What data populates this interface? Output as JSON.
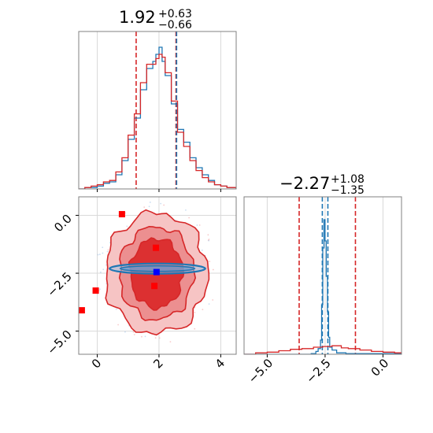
{
  "chart_data": [
    {
      "type": "histogram",
      "panel": "top-left",
      "title": {
        "median": "1.92",
        "plus": "+0.63",
        "minus": "−0.66"
      },
      "xlim": [
        -0.6,
        4.5
      ],
      "grid": true,
      "vlines": [
        {
          "x": 1.26,
          "color": "#d62728"
        },
        {
          "x": 2.55,
          "color": "#d62728"
        },
        {
          "x": 2.57,
          "color": "#1f77b4"
        }
      ],
      "series": [
        {
          "color": "#1f77b4",
          "x": [
            -0.6,
            -0.4,
            -0.2,
            0.0,
            0.2,
            0.4,
            0.6,
            0.8,
            1.0,
            1.2,
            1.4,
            1.6,
            1.8,
            1.9,
            2.0,
            2.1,
            2.2,
            2.4,
            2.6,
            2.8,
            3.0,
            3.2,
            3.4,
            3.6,
            3.8,
            4.0,
            4.2,
            4.5
          ],
          "y": [
            0.0,
            0.01,
            0.01,
            0.02,
            0.04,
            0.05,
            0.1,
            0.2,
            0.35,
            0.5,
            0.7,
            0.85,
            0.9,
            0.95,
            1.0,
            0.9,
            0.8,
            0.6,
            0.42,
            0.33,
            0.22,
            0.15,
            0.1,
            0.06,
            0.03,
            0.02,
            0.01,
            0.0
          ]
        },
        {
          "color": "#d62728",
          "x": [
            -0.6,
            -0.4,
            -0.2,
            0.0,
            0.2,
            0.4,
            0.6,
            0.8,
            1.0,
            1.2,
            1.4,
            1.6,
            1.8,
            1.9,
            2.0,
            2.1,
            2.2,
            2.4,
            2.6,
            2.8,
            3.0,
            3.2,
            3.4,
            3.6,
            3.8,
            4.0,
            4.2,
            4.5
          ],
          "y": [
            0.0,
            0.01,
            0.02,
            0.03,
            0.05,
            0.06,
            0.12,
            0.22,
            0.38,
            0.53,
            0.75,
            0.88,
            0.88,
            0.92,
            0.95,
            0.93,
            0.82,
            0.62,
            0.4,
            0.3,
            0.2,
            0.13,
            0.08,
            0.05,
            0.03,
            0.02,
            0.01,
            0.0
          ]
        }
      ]
    },
    {
      "type": "contour",
      "panel": "bottom-left",
      "xlim": [
        -0.6,
        4.5
      ],
      "ylim": [
        -6.0,
        0.8
      ],
      "xticks": [
        "0",
        "2",
        "4"
      ],
      "xtick_values": [
        0,
        2,
        4
      ],
      "yticks": [
        "0.0",
        "−2.5",
        "−5.0"
      ],
      "ytick_values": [
        0.0,
        -2.5,
        -5.0
      ],
      "grid": true,
      "red_contours": {
        "center": [
          1.92,
          -2.5
        ],
        "radii_x": [
          1.65,
          1.2,
          0.85
        ],
        "radii_y": [
          2.6,
          2.0,
          1.5
        ],
        "fills": [
          "#f6c4c4",
          "#ec8f90",
          "#dc3031"
        ],
        "color": "#d62728"
      },
      "blue_contour": {
        "center": [
          1.95,
          -2.3
        ],
        "rx": 1.55,
        "ry": 0.22,
        "color": "#1f77b4"
      },
      "red_markers": [
        [
          0.8,
          0.05
        ],
        [
          1.9,
          -1.4
        ],
        [
          1.85,
          -3.05
        ],
        [
          -0.05,
          -3.25
        ],
        [
          -0.5,
          -4.1
        ]
      ],
      "blue_marker": [
        1.92,
        -2.45
      ]
    },
    {
      "type": "histogram",
      "panel": "bottom-right",
      "title": {
        "median": "−2.27",
        "plus": "+1.08",
        "minus": "−1.35"
      },
      "xlim": [
        -6.0,
        0.8
      ],
      "xticks": [
        "−5.0",
        "−2.5",
        "0.0"
      ],
      "xtick_values": [
        -5.0,
        -2.5,
        0.0
      ],
      "grid": true,
      "vlines": [
        {
          "x": -3.62,
          "color": "#d62728"
        },
        {
          "x": -1.19,
          "color": "#d62728"
        },
        {
          "x": -2.62,
          "color": "#1f77b4"
        },
        {
          "x": -2.38,
          "color": "#1f77b4"
        }
      ],
      "series": [
        {
          "color": "#1f77b4",
          "x": [
            -6.0,
            -3.1,
            -2.9,
            -2.8,
            -2.7,
            -2.65,
            -2.6,
            -2.55,
            -2.5,
            -2.45,
            -2.4,
            -2.35,
            -2.3,
            -2.2,
            -2.0,
            -1.6,
            0.8
          ],
          "y": [
            0.0,
            0.005,
            0.02,
            0.04,
            0.1,
            0.35,
            0.75,
            0.95,
            0.8,
            0.55,
            0.3,
            0.12,
            0.05,
            0.03,
            0.01,
            0.005,
            0.0
          ]
        },
        {
          "color": "#d62728",
          "x": [
            -6.0,
            -5.5,
            -5.0,
            -4.5,
            -4.0,
            -3.5,
            -3.0,
            -2.6,
            -2.2,
            -1.8,
            -1.5,
            -1.0,
            -0.5,
            0.0,
            0.5,
            0.8
          ],
          "y": [
            0.0,
            0.01,
            0.015,
            0.025,
            0.035,
            0.04,
            0.05,
            0.055,
            0.06,
            0.045,
            0.04,
            0.03,
            0.02,
            0.015,
            0.01,
            0.0
          ]
        }
      ]
    }
  ]
}
